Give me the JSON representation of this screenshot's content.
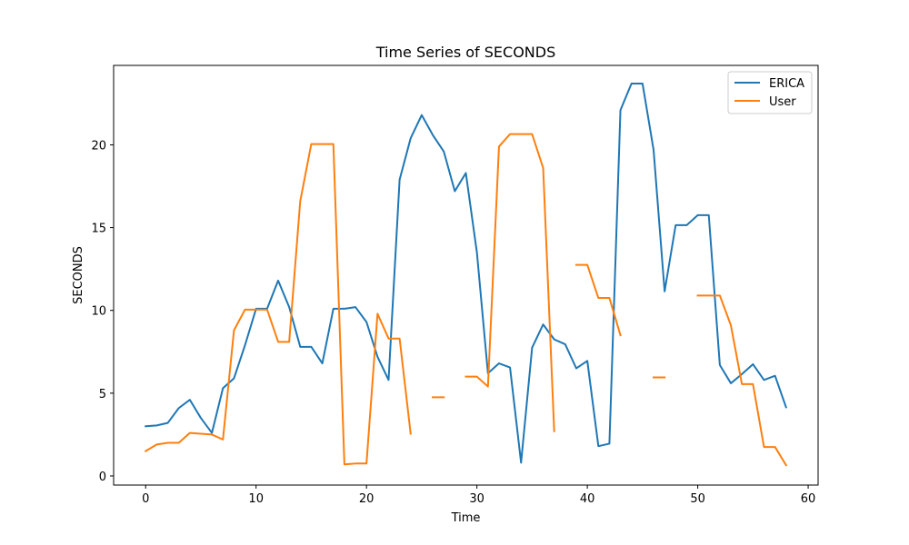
{
  "chart_data": {
    "type": "line",
    "title": "Time Series of SECONDS",
    "xlabel": "Time",
    "ylabel": "SECONDS",
    "xlim": [
      -2.9,
      60.9
    ],
    "ylim": [
      -0.55,
      24.8
    ],
    "xticks": [
      0,
      10,
      20,
      30,
      40,
      50,
      60
    ],
    "yticks": [
      0,
      5,
      10,
      15,
      20
    ],
    "grid": false,
    "legend_position": "top-right",
    "x": [
      0,
      1,
      2,
      3,
      4,
      5,
      6,
      7,
      8,
      9,
      10,
      11,
      12,
      13,
      14,
      15,
      16,
      17,
      18,
      19,
      20,
      21,
      22,
      23,
      24,
      25,
      26,
      27,
      28,
      29,
      30,
      31,
      32,
      33,
      34,
      35,
      36,
      37,
      38,
      39,
      40,
      41,
      42,
      43,
      44,
      45,
      46,
      47,
      48,
      49,
      50,
      51,
      52,
      53,
      54,
      55,
      56,
      57,
      58
    ],
    "series": [
      {
        "name": "ERICA",
        "color": "#1f77b4",
        "values": [
          3.0,
          3.05,
          3.2,
          4.1,
          4.6,
          3.5,
          2.6,
          5.3,
          5.9,
          7.9,
          10.1,
          10.1,
          11.8,
          10.2,
          7.8,
          7.8,
          6.8,
          10.1,
          10.1,
          10.2,
          9.3,
          7.2,
          5.8,
          17.9,
          20.4,
          21.8,
          20.6,
          19.6,
          17.2,
          18.3,
          13.5,
          6.2,
          6.8,
          6.55,
          0.8,
          7.75,
          9.15,
          8.25,
          7.95,
          6.5,
          6.95,
          1.8,
          1.95,
          22.1,
          23.7,
          23.7,
          19.7,
          11.15,
          15.15,
          15.15,
          15.75,
          15.75,
          6.7,
          5.6,
          6.15,
          6.75,
          5.8,
          6.05,
          4.15
        ]
      },
      {
        "name": "User",
        "color": "#ff7f0e",
        "values": [
          1.5,
          1.9,
          2.0,
          2.0,
          2.6,
          2.55,
          2.5,
          2.2,
          8.8,
          10.05,
          10.05,
          10.05,
          8.1,
          8.1,
          16.6,
          20.05,
          20.05,
          20.05,
          0.7,
          0.75,
          0.75,
          9.8,
          8.3,
          8.3,
          2.55,
          null,
          4.75,
          4.75,
          null,
          6.0,
          6.0,
          5.4,
          19.9,
          20.65,
          20.65,
          20.65,
          18.6,
          2.7,
          null,
          12.75,
          12.75,
          10.75,
          10.75,
          8.5,
          null,
          null,
          5.95,
          5.95,
          null,
          null,
          10.9,
          10.9,
          10.9,
          9.1,
          5.55,
          5.55,
          1.75,
          1.75,
          0.65
        ]
      }
    ]
  }
}
